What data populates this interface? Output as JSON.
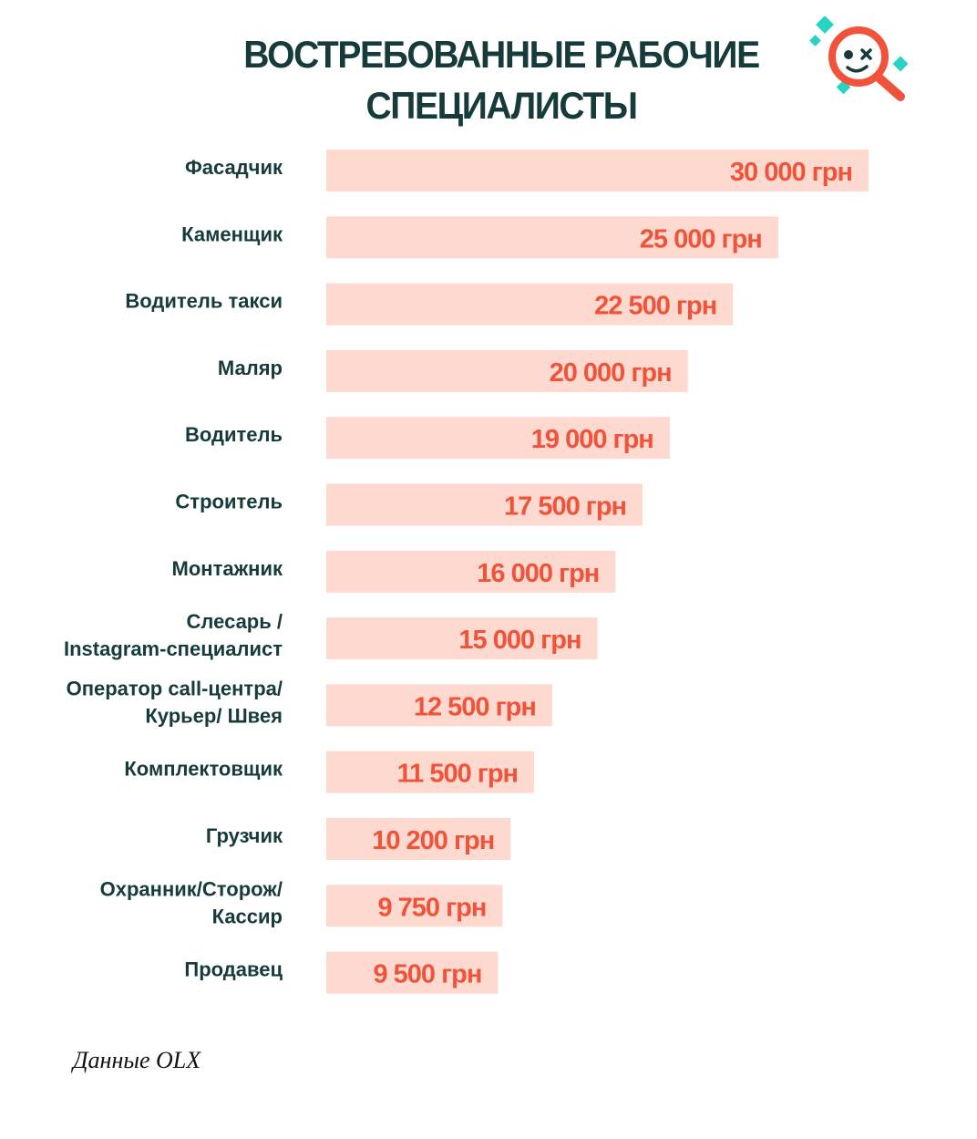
{
  "chart_data": {
    "type": "bar",
    "orientation": "horizontal",
    "title_lines": [
      "ВОСТРЕБОВАННЫЕ РАБОЧИЕ",
      "СПЕЦИАЛИСТЫ"
    ],
    "categories": [
      [
        "Фасадчик"
      ],
      [
        "Каменщик"
      ],
      [
        "Водитель такси"
      ],
      [
        "Маляр"
      ],
      [
        "Водитель"
      ],
      [
        "Строитель"
      ],
      [
        "Монтажник"
      ],
      [
        "Слесарь /",
        "Instagram-специалист"
      ],
      [
        "Оператор call-центра/",
        "Курьер/ Швея"
      ],
      [
        "Комплектовщик"
      ],
      [
        "Грузчик"
      ],
      [
        "Охранник/Сторож/",
        "Кассир"
      ],
      [
        "Продавец"
      ]
    ],
    "values": [
      30000,
      25000,
      22500,
      20000,
      19000,
      17500,
      16000,
      15000,
      12500,
      11500,
      10200,
      9750,
      9500
    ],
    "value_labels": [
      "30 000 грн",
      "25 000 грн",
      "22 500 грн",
      "20 000 грн",
      "19 000 грн",
      "17 500 грн",
      "16 000 грн",
      "15 000 грн",
      "12 500 грн",
      "11 500 грн",
      "10 200 грн",
      "9 750 грн",
      "9 500 грн"
    ],
    "bar_color": "#fdd9d0",
    "label_color": "#f0533a",
    "category_color": "#173b3b"
  },
  "source_note": "Данные OLX",
  "logo": {
    "icon": "magnifier-face-icon",
    "accent": "#f0533a",
    "secondary": "#27d3c3"
  }
}
